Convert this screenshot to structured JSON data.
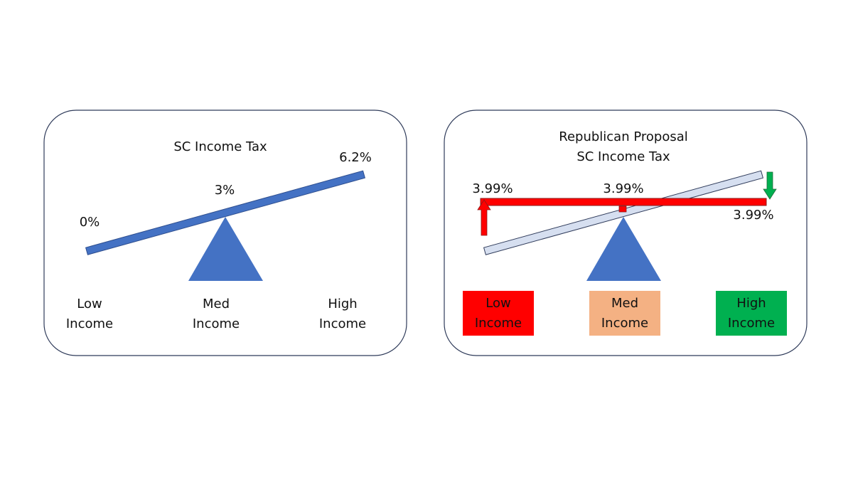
{
  "left_panel": {
    "title": "SC Income Tax",
    "rate_labels": [
      "0%",
      "3%",
      "6.2%"
    ],
    "groups": [
      [
        "Low",
        "Income"
      ],
      [
        "Med",
        "Income"
      ],
      [
        "High",
        "Income"
      ]
    ]
  },
  "right_panel": {
    "title": [
      "Republican Proposal",
      "SC Income Tax"
    ],
    "rate_labels": [
      "3.99%",
      "3.99%",
      "3.99%"
    ],
    "groups": [
      [
        "Low",
        "Income"
      ],
      [
        "Med",
        "Income"
      ],
      [
        "High",
        "Income"
      ]
    ]
  }
}
